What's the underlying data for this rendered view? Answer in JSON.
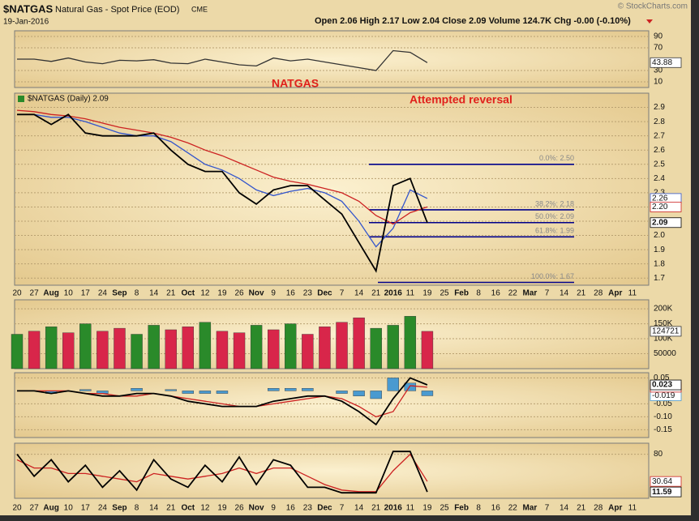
{
  "header": {
    "symbol": "$NATGAS",
    "name": "Natural Gas - Spot Price (EOD)",
    "exchange": "CME",
    "date": "19-Jan-2016",
    "quote": "Open 2.06  High 2.17  Low 2.04  Close 2.09  Volume 124.7K  Chg -0.00 (-0.10%)",
    "credit": "© StockCharts.com"
  },
  "chart_data": [
    {
      "type": "line",
      "ylim": [
        0,
        100
      ],
      "yticks": [
        10,
        30,
        70,
        90
      ],
      "grid": true,
      "series": [
        {
          "color": "#333333",
          "values": [
            50,
            50,
            46,
            52,
            45,
            42,
            48,
            47,
            49,
            43,
            42,
            50,
            45,
            40,
            38,
            52,
            47,
            50,
            45,
            40,
            35,
            30,
            65,
            62,
            43.88,
            null,
            null,
            null,
            null,
            null,
            null,
            null,
            null,
            null,
            null,
            null,
            null
          ]
        }
      ]
    },
    {
      "type": "line",
      "ylim": [
        1.65,
        3.0
      ],
      "grid": true,
      "yticks": [
        1.7,
        1.8,
        1.9,
        {
          "value": 2,
          "label": "2.0"
        },
        2.1,
        2.2,
        2.3,
        2.4,
        2.5,
        2.6,
        2.7,
        2.8,
        2.9
      ],
      "categories": [
        "20",
        "27",
        "Aug",
        "10",
        "17",
        "24",
        "Sep",
        "8",
        "14",
        "21",
        "Oct",
        "12",
        "19",
        "26",
        "Nov",
        "9",
        "16",
        "23",
        "Dec",
        "7",
        "14",
        "21",
        "2016",
        "11",
        "19",
        "25",
        "Feb",
        "8",
        "16",
        "22",
        "Mar",
        "7",
        "14",
        "21",
        "28",
        "Apr",
        "11"
      ],
      "legend": "$NATGAS (Daily) 2.09",
      "annotations": [
        "NATGAS",
        "Attempted reversal"
      ],
      "fib": [
        {
          "level": 2.5,
          "label": "0.0%: 2.50"
        },
        {
          "level": 2.18,
          "label": "38.2%: 2.18"
        },
        {
          "level": 2.09,
          "label": "50.0%: 2.09"
        },
        {
          "level": 1.99,
          "label": "61.8%: 1.99"
        },
        {
          "level": 1.67,
          "label": "100.0%: 1.67"
        }
      ],
      "series": [
        {
          "color": "#3355cc",
          "values": [
            2.85,
            2.85,
            2.83,
            2.83,
            2.8,
            2.76,
            2.72,
            2.7,
            2.7,
            2.66,
            2.58,
            2.5,
            2.46,
            2.4,
            2.32,
            2.28,
            2.31,
            2.33,
            2.3,
            2.24,
            2.1,
            1.92,
            2.05,
            2.32,
            2.26,
            null,
            null,
            null,
            null,
            null,
            null,
            null,
            null,
            null,
            null,
            null,
            null
          ]
        },
        {
          "color": "#cc2222",
          "values": [
            2.88,
            2.87,
            2.85,
            2.84,
            2.82,
            2.79,
            2.76,
            2.74,
            2.72,
            2.69,
            2.65,
            2.6,
            2.56,
            2.51,
            2.46,
            2.41,
            2.38,
            2.36,
            2.33,
            2.3,
            2.24,
            2.14,
            2.08,
            2.16,
            2.2,
            null,
            null,
            null,
            null,
            null,
            null,
            null,
            null,
            null,
            null,
            null,
            null
          ],
          "value_labels": [
            null,
            null,
            null,
            null,
            null,
            null,
            null,
            null,
            null,
            null,
            null,
            null,
            null,
            null,
            null,
            null,
            null,
            null,
            null,
            null,
            null,
            null,
            null,
            null,
            "2.20",
            null,
            null,
            null,
            null,
            null,
            null,
            null,
            null,
            null,
            null,
            null,
            null
          ]
        },
        {
          "color": "#000000",
          "values": [
            2.85,
            2.85,
            2.78,
            2.85,
            2.72,
            2.7,
            2.7,
            2.7,
            2.72,
            2.6,
            2.5,
            2.45,
            2.45,
            2.3,
            2.22,
            2.32,
            2.35,
            2.35,
            2.25,
            2.15,
            1.95,
            1.75,
            2.35,
            2.4,
            2.09,
            null,
            null,
            null,
            null,
            null,
            null,
            null,
            null,
            null,
            null,
            null,
            null
          ]
        }
      ]
    },
    {
      "type": "bar",
      "ylim": [
        0,
        230000
      ],
      "grid": true,
      "yticks": [
        {
          "value": 50000,
          "label": "50000"
        },
        {
          "value": 100000,
          "label": "100K"
        },
        {
          "value": 150000,
          "label": "150K"
        },
        {
          "value": 200000,
          "label": "200K"
        }
      ],
      "series": [
        {
          "colors": [
            "#2a8a2a",
            "#d8264a",
            "#2a8a2a",
            "#d8264a",
            "#2a8a2a",
            "#d8264a",
            "#d8264a",
            "#2a8a2a",
            "#2a8a2a",
            "#d8264a",
            "#d8264a",
            "#2a8a2a",
            "#d8264a",
            "#d8264a",
            "#2a8a2a",
            "#d8264a",
            "#2a8a2a",
            "#d8264a",
            "#d8264a",
            "#d8264a",
            "#d8264a",
            "#2a8a2a",
            "#2a8a2a",
            "#2a8a2a",
            "#d8264a"
          ],
          "values": [
            115000,
            125000,
            140000,
            120000,
            150000,
            125000,
            135000,
            115000,
            145000,
            130000,
            140000,
            155000,
            125000,
            120000,
            145000,
            130000,
            150000,
            115000,
            140000,
            155000,
            170000,
            135000,
            145000,
            175000,
            124721,
            null,
            null,
            null,
            null,
            null,
            null,
            null,
            null,
            null,
            null,
            null,
            null
          ]
        }
      ]
    },
    {
      "type": "line",
      "ylim": [
        -0.18,
        0.07
      ],
      "grid": true,
      "yticks": [
        -0.15,
        {
          "value": -0.1,
          "label": "-0.10"
        },
        -0.05,
        0.05
      ],
      "series": [
        {
          "type": "bar",
          "color": "#4a9ad0",
          "values": [
            0,
            0,
            -0.01,
            0,
            0.005,
            -0.01,
            0,
            0.01,
            0,
            0.005,
            -0.01,
            -0.01,
            -0.01,
            0,
            0,
            0.01,
            0.01,
            0.01,
            0,
            -0.01,
            -0.02,
            -0.03,
            0.05,
            0.03,
            -0.019,
            null,
            null,
            null,
            null,
            null,
            null,
            null,
            null,
            null,
            null,
            null,
            null
          ]
        },
        {
          "color": "#cc2222",
          "values": [
            0,
            0,
            0,
            0,
            -0.01,
            -0.01,
            -0.02,
            -0.02,
            -0.01,
            -0.02,
            -0.03,
            -0.04,
            -0.05,
            -0.06,
            -0.06,
            -0.05,
            -0.04,
            -0.03,
            -0.02,
            -0.03,
            -0.06,
            -0.1,
            -0.08,
            0.02,
            0.014,
            null,
            null,
            null,
            null,
            null,
            null,
            null,
            null,
            null,
            null,
            null,
            null
          ]
        },
        {
          "color": "#000000",
          "values": [
            0,
            0,
            -0.01,
            0,
            -0.01,
            -0.02,
            -0.02,
            -0.01,
            -0.01,
            -0.02,
            -0.04,
            -0.05,
            -0.06,
            -0.06,
            -0.06,
            -0.04,
            -0.03,
            -0.02,
            -0.02,
            -0.04,
            -0.08,
            -0.13,
            -0.03,
            0.05,
            0.023,
            null,
            null,
            null,
            null,
            null,
            null,
            null,
            null,
            null,
            null,
            null,
            null
          ]
        }
      ]
    },
    {
      "type": "line",
      "ylim": [
        0,
        100
      ],
      "yticks": [
        80
      ],
      "grid": true,
      "categories": [
        "20",
        "27",
        "Aug",
        "10",
        "17",
        "24",
        "Sep",
        "8",
        "14",
        "21",
        "Oct",
        "12",
        "19",
        "26",
        "Nov",
        "9",
        "16",
        "23",
        "Dec",
        "7",
        "14",
        "21",
        "2016",
        "11",
        "19",
        "25",
        "Feb",
        "8",
        "16",
        "22",
        "Mar",
        "7",
        "14",
        "21",
        "28",
        "Apr",
        "11"
      ],
      "series": [
        {
          "color": "#cc2222",
          "values": [
            70,
            55,
            55,
            45,
            45,
            40,
            35,
            30,
            45,
            40,
            35,
            40,
            45,
            55,
            45,
            55,
            55,
            40,
            25,
            15,
            12,
            12,
            50,
            80,
            30.64,
            null,
            null,
            null,
            null,
            null,
            null,
            null,
            null,
            null,
            null,
            null,
            null
          ]
        },
        {
          "color": "#000000",
          "values": [
            80,
            40,
            70,
            30,
            60,
            20,
            50,
            15,
            70,
            35,
            20,
            60,
            30,
            75,
            25,
            70,
            60,
            20,
            20,
            10,
            10,
            10,
            85,
            85,
            11.59,
            null,
            null,
            null,
            null,
            null,
            null,
            null,
            null,
            null,
            null,
            null,
            null
          ]
        }
      ]
    }
  ]
}
